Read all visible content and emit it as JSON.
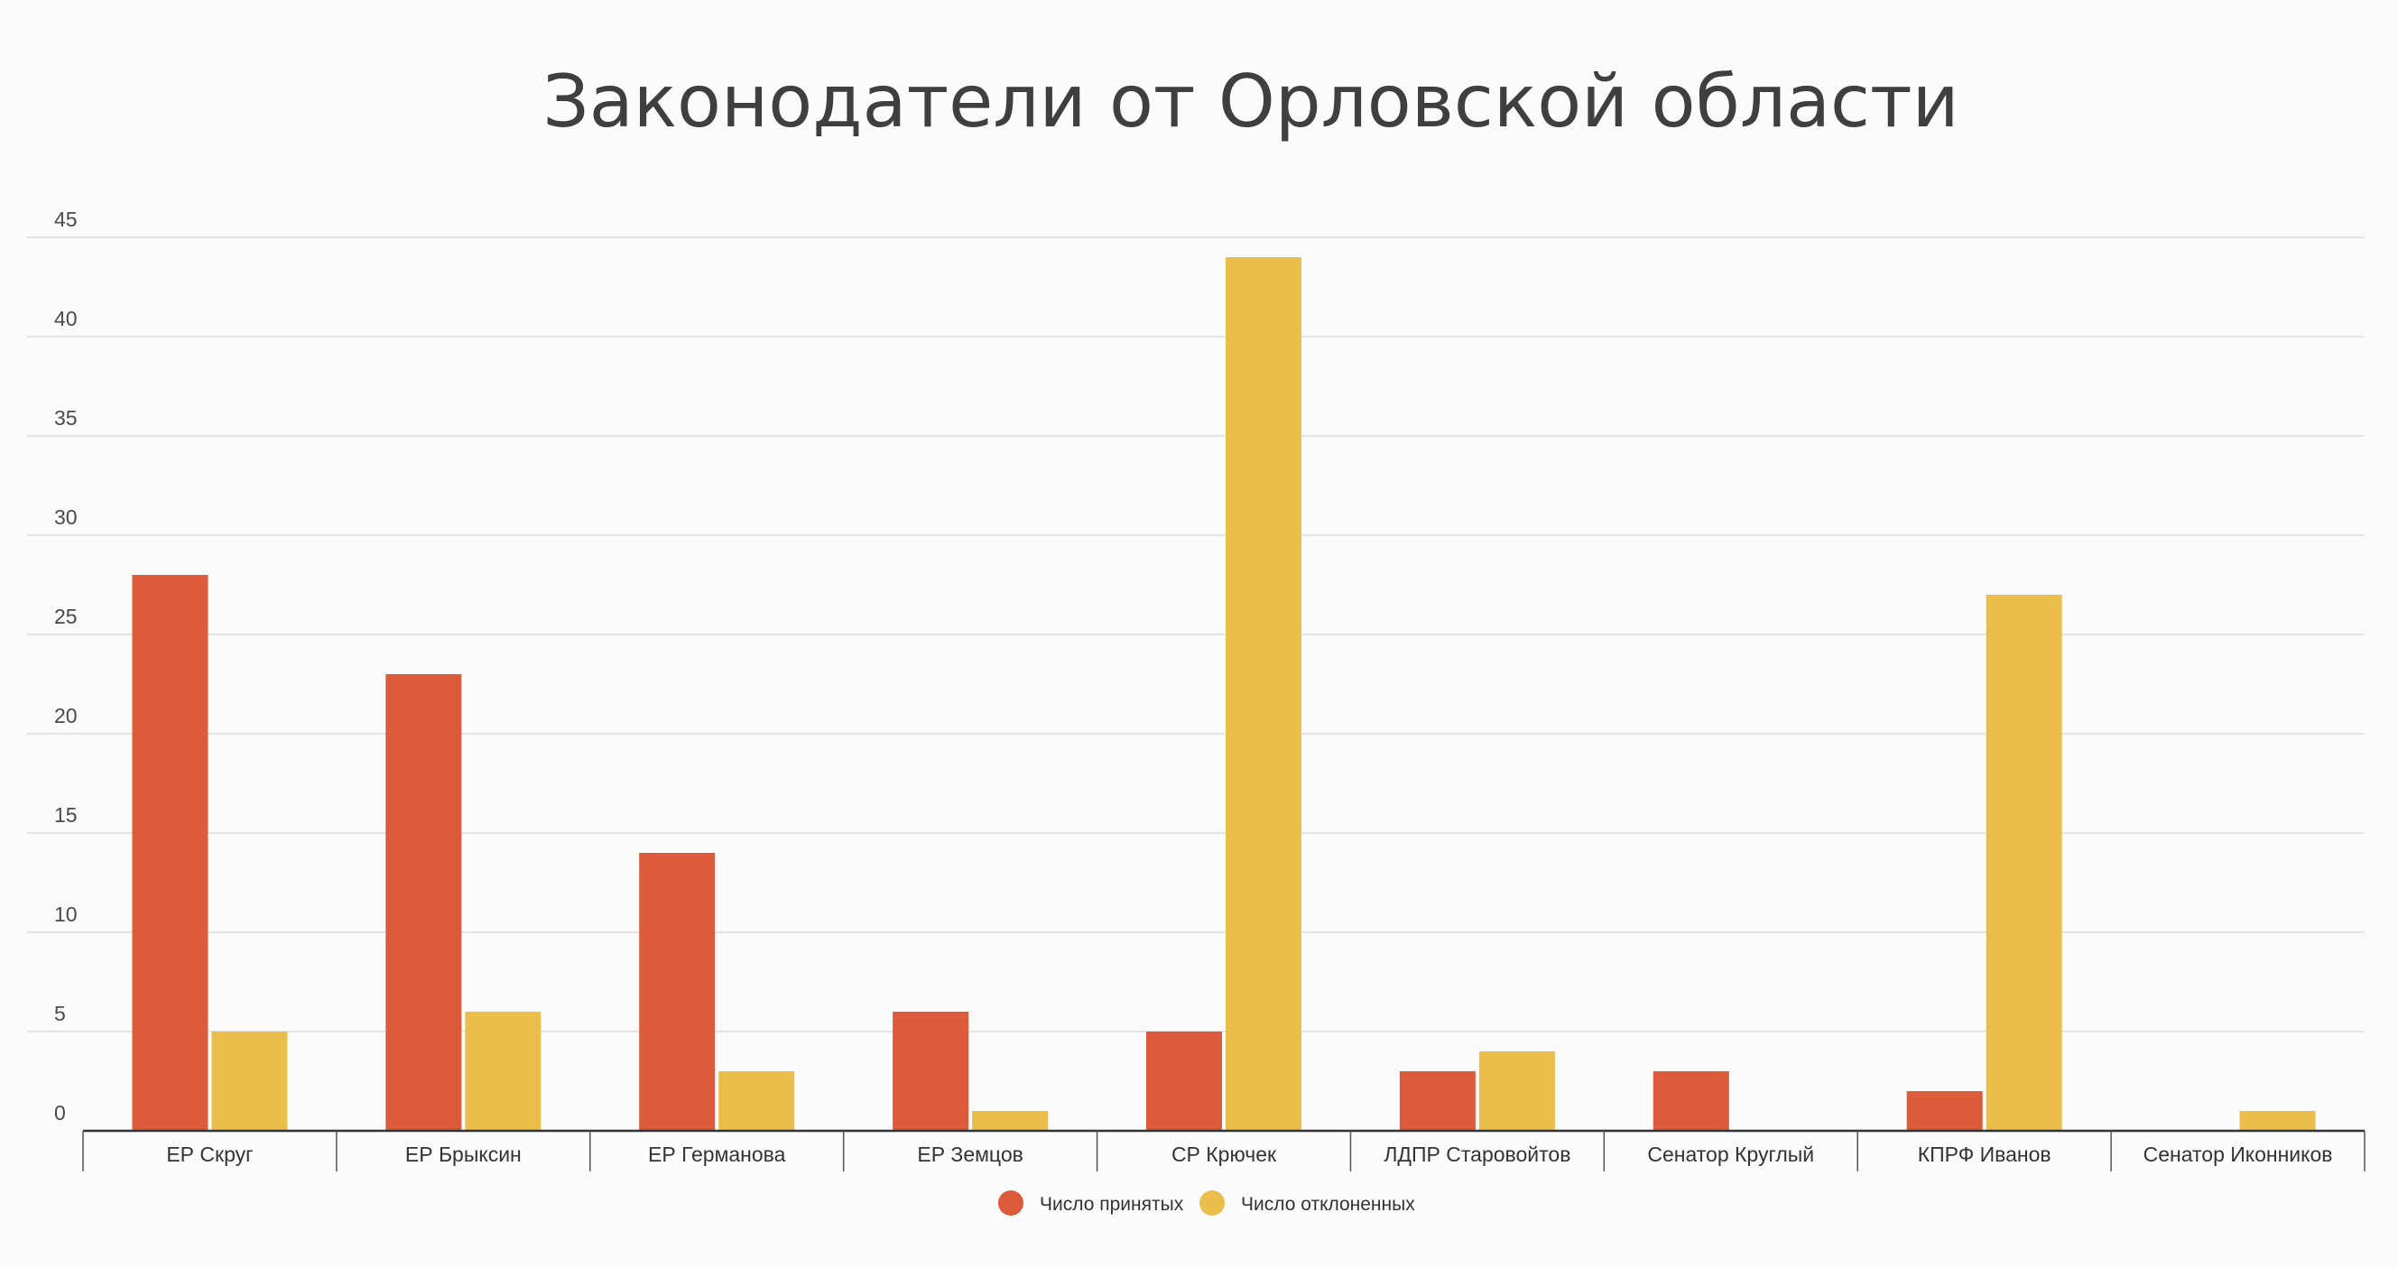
{
  "chart_data": {
    "type": "bar",
    "title": "Законодатели от Орловской области",
    "xlabel": "",
    "ylabel": "",
    "categories": [
      "ЕР Скруг",
      "ЕР Брыксин",
      "ЕР Германова",
      "ЕР Земцов",
      "СР Крючек",
      "ЛДПР Старовойтов",
      "Сенатор Круглый",
      "КПРФ Иванов",
      "Сенатор Иконников"
    ],
    "series": [
      {
        "name": "Число принятых",
        "color": "#dc5b3b",
        "values": [
          28,
          23,
          14,
          6,
          5,
          3,
          3,
          2,
          0
        ]
      },
      {
        "name": "Число отклоненных",
        "color": "#ebbd4b",
        "values": [
          5,
          6,
          3,
          1,
          44,
          4,
          0,
          27,
          1
        ]
      }
    ],
    "ylim": [
      0,
      45
    ],
    "yticks": [
      0,
      5,
      10,
      15,
      20,
      25,
      30,
      35,
      40,
      45
    ],
    "grid": true,
    "legend_position": "bottom-center"
  }
}
